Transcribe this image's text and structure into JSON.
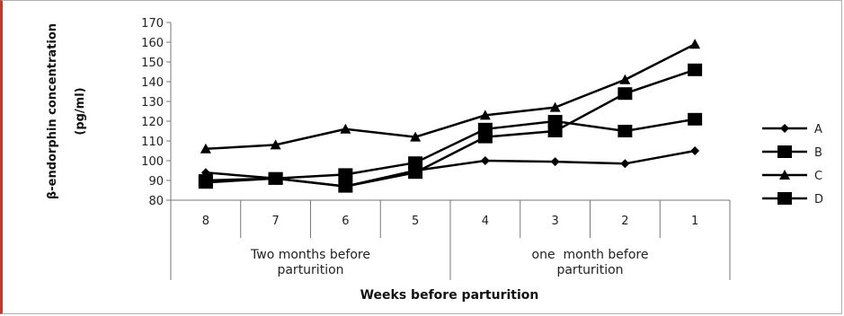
{
  "chart_data": {
    "type": "line",
    "xlabel": "Weeks before parturition",
    "ylabel_line1": "β-endorphin concentration",
    "ylabel_line2": "(pg/ml)",
    "ylim": [
      80,
      170
    ],
    "yticks": [
      80,
      90,
      100,
      110,
      120,
      130,
      140,
      150,
      160,
      170
    ],
    "categories": [
      "8",
      "7",
      "6",
      "5",
      "4",
      "3",
      "2",
      "1"
    ],
    "groups": [
      {
        "line1": "Two months before",
        "line2": "parturition",
        "span": [
          0,
          4
        ]
      },
      {
        "line1": "one  month before",
        "line2": "parturition",
        "span": [
          4,
          8
        ]
      }
    ],
    "series": [
      {
        "name": "A",
        "marker": "diamond",
        "values": [
          94,
          91,
          87,
          95,
          100,
          99.5,
          98.5,
          105
        ]
      },
      {
        "name": "B",
        "marker": "square",
        "values": [
          89,
          91,
          93,
          99,
          116,
          120,
          115,
          121
        ]
      },
      {
        "name": "C",
        "marker": "triangle",
        "values": [
          106,
          108,
          116,
          112,
          123,
          127,
          141,
          159
        ]
      },
      {
        "name": "D",
        "marker": "square",
        "values": [
          90,
          91,
          87,
          94,
          112,
          115,
          134,
          146
        ]
      }
    ],
    "grid": false,
    "legend_position": "right"
  }
}
